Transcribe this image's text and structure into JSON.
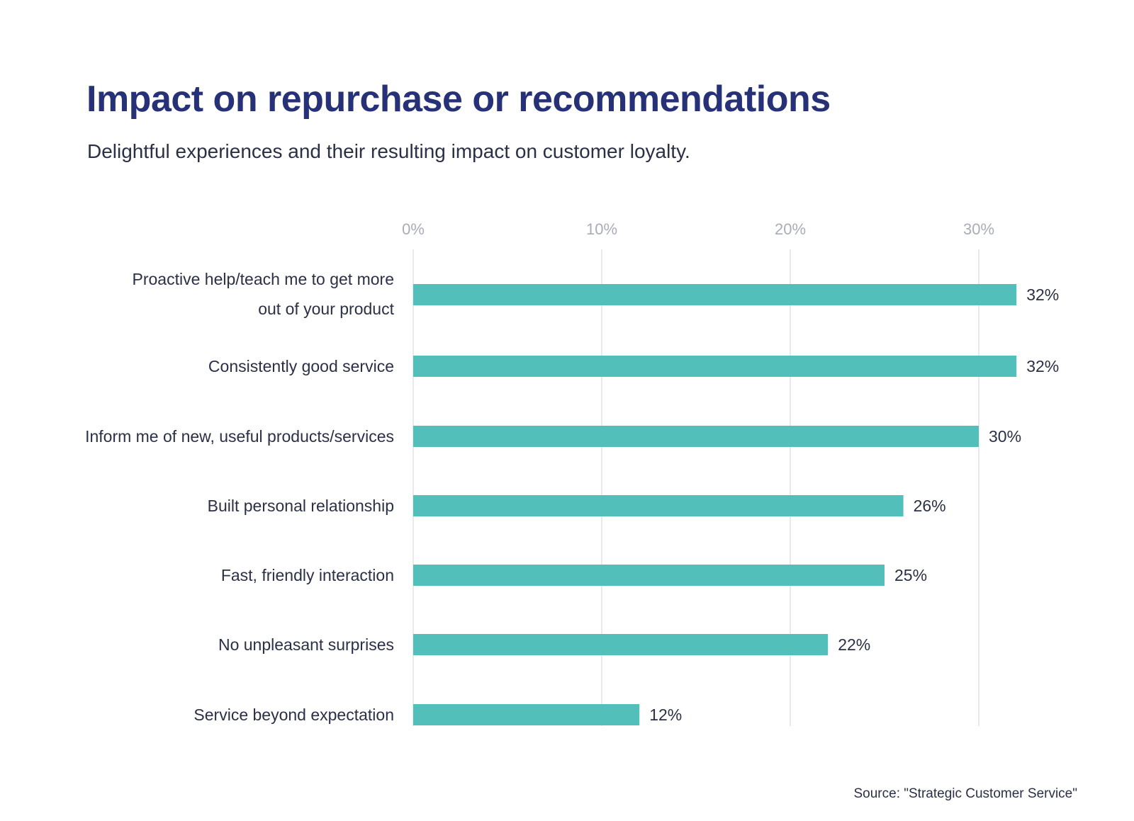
{
  "chart_data": {
    "type": "bar",
    "orientation": "horizontal",
    "title": "Impact on repurchase or recommendations",
    "subtitle": "Delightful experiences and their resulting impact on customer loyalty.",
    "source": "Source: \"Strategic Customer Service\"",
    "categories": [
      [
        "Proactive help/teach me to get more",
        "out of your product"
      ],
      [
        "Consistently good service"
      ],
      [
        "Inform me of new, useful products/services"
      ],
      [
        "Built personal relationship"
      ],
      [
        "Fast, friendly interaction"
      ],
      [
        "No unpleasant surprises"
      ],
      [
        "Service beyond expectation"
      ]
    ],
    "values": [
      32,
      32,
      30,
      26,
      25,
      22,
      12
    ],
    "value_labels": [
      "32%",
      "32%",
      "30%",
      "26%",
      "25%",
      "22%",
      "12%"
    ],
    "xticks": [
      0,
      10,
      20,
      30
    ],
    "xtick_labels": [
      "0%",
      "10%",
      "20%",
      "30%"
    ],
    "xlim": [
      0,
      33
    ],
    "xaxis_position": "top",
    "grid": true,
    "colors": {
      "bar": "#4dbdb9",
      "title": "#263178",
      "text": "#2b3046",
      "tick": "#a9adb8",
      "grid": "#e3e4e8"
    }
  }
}
